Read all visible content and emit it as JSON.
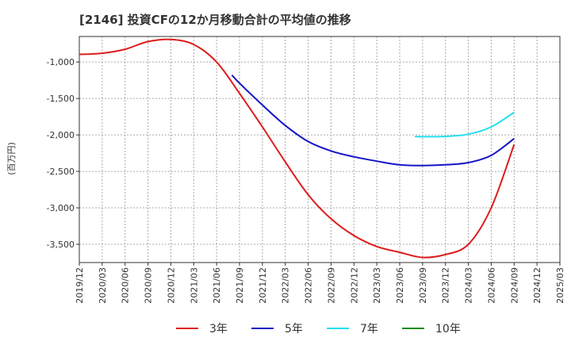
{
  "chart_data": {
    "type": "line",
    "title": "[2146]  投資CFの12か月移動合計の平均値の推移",
    "ylabel": "(百万円)",
    "xlabel": "",
    "ylim": [
      -3750,
      -650
    ],
    "yticks": [
      -1000,
      -1500,
      -2000,
      -2500,
      -3000,
      -3500
    ],
    "ytick_labels": [
      "-1,000",
      "-1,500",
      "-2,000",
      "-2,500",
      "-3,000",
      "-3,500"
    ],
    "xticks": [
      "2019/12",
      "2020/03",
      "2020/06",
      "2020/09",
      "2020/12",
      "2021/03",
      "2021/06",
      "2021/09",
      "2021/12",
      "2022/03",
      "2022/06",
      "2022/09",
      "2022/12",
      "2023/03",
      "2023/06",
      "2023/09",
      "2023/12",
      "2024/03",
      "2024/06",
      "2024/09",
      "2024/12",
      "2025/03"
    ],
    "grid": true,
    "legend_position": "bottom",
    "series": [
      {
        "name": "3年",
        "color": "#dd1c1c",
        "points": [
          [
            "2019/12",
            -895
          ],
          [
            "2020/03",
            -880
          ],
          [
            "2020/06",
            -825
          ],
          [
            "2020/09",
            -720
          ],
          [
            "2020/12",
            -690
          ],
          [
            "2021/03",
            -760
          ],
          [
            "2021/06",
            -1000
          ],
          [
            "2021/09",
            -1430
          ],
          [
            "2021/12",
            -1890
          ],
          [
            "2022/03",
            -2370
          ],
          [
            "2022/06",
            -2820
          ],
          [
            "2022/09",
            -3150
          ],
          [
            "2022/12",
            -3380
          ],
          [
            "2023/03",
            -3530
          ],
          [
            "2023/06",
            -3610
          ],
          [
            "2023/09",
            -3680
          ],
          [
            "2023/12",
            -3640
          ],
          [
            "2024/03",
            -3500
          ],
          [
            "2024/06",
            -3000
          ],
          [
            "2024/09",
            -2130
          ]
        ]
      },
      {
        "name": "5年",
        "color": "#1414c8",
        "points": [
          [
            "2021/08",
            -1180
          ],
          [
            "2021/09",
            -1290
          ],
          [
            "2021/12",
            -1590
          ],
          [
            "2022/03",
            -1870
          ],
          [
            "2022/06",
            -2090
          ],
          [
            "2022/09",
            -2220
          ],
          [
            "2022/12",
            -2300
          ],
          [
            "2023/03",
            -2360
          ],
          [
            "2023/06",
            -2410
          ],
          [
            "2023/09",
            -2420
          ],
          [
            "2023/12",
            -2410
          ],
          [
            "2024/03",
            -2380
          ],
          [
            "2024/06",
            -2280
          ],
          [
            "2024/09",
            -2050
          ]
        ]
      },
      {
        "name": "7年",
        "color": "#22e0ee",
        "points": [
          [
            "2023/08",
            -2020
          ],
          [
            "2023/09",
            -2025
          ],
          [
            "2023/12",
            -2020
          ],
          [
            "2024/03",
            -1990
          ],
          [
            "2024/06",
            -1890
          ],
          [
            "2024/09",
            -1690
          ]
        ]
      },
      {
        "name": "10年",
        "color": "#1a8a1a",
        "points": []
      }
    ]
  }
}
